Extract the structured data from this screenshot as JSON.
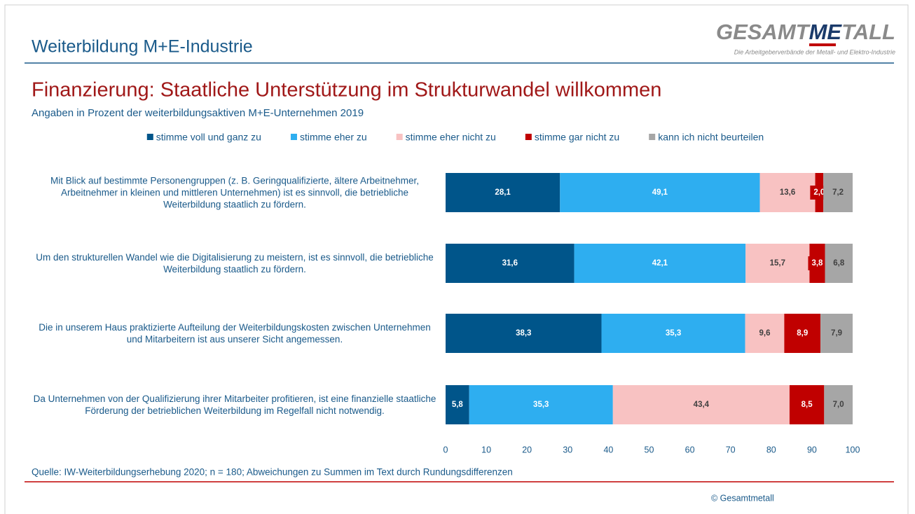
{
  "header": {
    "title": "Weiterbildung M+E-Industrie",
    "logo": [
      "GESAMT",
      "ME",
      "TALL"
    ],
    "logo_tagline": "Die Arbeitgeberverbände der Metall- und Elektro-Industrie"
  },
  "chart_data": {
    "type": "stacked-bar-horizontal",
    "title": "Finanzierung: Staatliche Unterstützung im Strukturwandel willkommen",
    "subtitle": "Angaben in Prozent der weiterbildungsaktiven M+E-Unternehmen 2019",
    "categories": [
      "Mit Blick auf bestimmte Personengruppen (z. B. Geringqualifizierte, ältere Arbeitnehmer, Arbeitnehmer in kleinen und mittleren Unternehmen) ist es sinnvoll, die betriebliche Weiterbildung staatlich zu fördern.",
      "Um den strukturellen Wandel wie die Digitalisierung zu meistern, ist es sinnvoll, die betriebliche Weiterbildung staatlich zu fördern.",
      "Die in unserem Haus praktizierte Aufteilung der Weiterbildungskosten zwischen Unternehmen und Mitarbeitern ist aus unserer Sicht angemessen.",
      "Da Unternehmen von der Qualifizierung ihrer Mitarbeiter profitieren, ist eine finanzielle staatliche Förderung der betrieblichen Weiterbildung im Regelfall nicht notwendig."
    ],
    "series": [
      {
        "name": "stimme voll und ganz zu",
        "color": "#00558a",
        "values": [
          28.1,
          31.6,
          38.3,
          5.8
        ],
        "value_labels": [
          "28,1",
          "31,6",
          "38,3",
          "5,8"
        ]
      },
      {
        "name": "stimme eher zu",
        "color": "#2eaef0",
        "values": [
          49.1,
          42.1,
          35.3,
          35.3
        ],
        "value_labels": [
          "49,1",
          "42,1",
          "35,3",
          "35,3"
        ]
      },
      {
        "name": "stimme eher nicht zu",
        "color": "#f8c2c2",
        "values": [
          13.6,
          15.7,
          9.6,
          43.4
        ],
        "value_labels": [
          "13,6",
          "15,7",
          "9,6",
          "43,4"
        ]
      },
      {
        "name": "stimme gar nicht zu",
        "color": "#c00000",
        "values": [
          2.0,
          3.8,
          8.9,
          8.5
        ],
        "value_labels": [
          "2,0",
          "3,8",
          "8,9",
          "8,5"
        ]
      },
      {
        "name": "kann ich nicht beurteilen",
        "color": "#a6a6a6",
        "values": [
          7.2,
          6.8,
          7.9,
          7.0
        ],
        "value_labels": [
          "7,2",
          "6,8",
          "7,9",
          "7,0"
        ]
      }
    ],
    "xlim": [
      0,
      100
    ],
    "xticks": [
      0,
      10,
      20,
      30,
      40,
      50,
      60,
      70,
      80,
      90,
      100
    ],
    "legend": "top",
    "source": "Quelle: IW-Weiterbildungserhebung 2020; n = 180; Abweichungen zu Summen im Text durch Rundungsdifferenzen"
  },
  "footer": {
    "copyright": "© Gesamtmetall"
  }
}
